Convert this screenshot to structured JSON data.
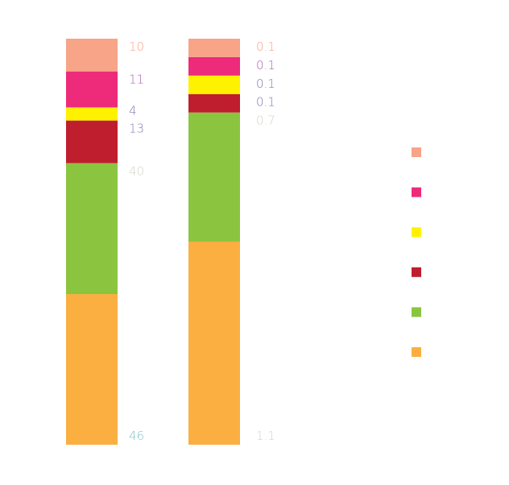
{
  "chart_data": {
    "type": "bar",
    "stacked": true,
    "categories": [
      "",
      ""
    ],
    "series": [
      {
        "values": [
          46,
          1.1
        ],
        "color": "#FBAF41",
        "label_colors": [
          "#7FC4CC",
          "#D6D2C8"
        ]
      },
      {
        "values": [
          40,
          0.7
        ],
        "color": "#8BC53F",
        "label_colors": [
          "#D6D2C8",
          "#D6D2C8"
        ]
      },
      {
        "values": [
          13,
          0.1
        ],
        "color": "#BF1E2E",
        "label_colors": [
          "#7E7BB3",
          "#7E7BB3"
        ]
      },
      {
        "values": [
          4,
          0.1
        ],
        "color": "#FFF200",
        "label_colors": [
          "#7E7BB3",
          "#7E7BB3"
        ]
      },
      {
        "values": [
          11,
          0.1
        ],
        "color": "#EE2A7B",
        "label_colors": [
          "#A765B0",
          "#A765B0"
        ]
      },
      {
        "values": [
          10,
          0.1
        ],
        "color": "#F7A488",
        "label_colors": [
          "#F7A488",
          "#F7A488"
        ]
      }
    ],
    "value_labels": [
      [
        "46",
        "40",
        "13",
        "4",
        "11",
        "10"
      ],
      [
        "1.1",
        "0.7",
        "0.1",
        "0.1",
        "0.1",
        "0.1"
      ]
    ],
    "legend": {
      "placement": "right",
      "swatches": [
        "#F7A488",
        "#EE2A7B",
        "#FFF200",
        "#BF1E2E",
        "#8BC53F",
        "#FBAF41"
      ]
    },
    "grid": false,
    "axes_visible": false
  }
}
